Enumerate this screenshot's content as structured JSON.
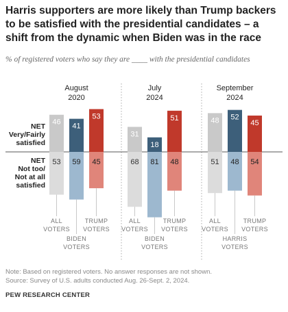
{
  "title": "Harris supporters are more likely than Trump backers to be satisfied with the presidential candidates – a shift from the dynamic when Biden was in the race",
  "subtitle": "% of registered voters who say they are ____ with the presidential candidates",
  "row_labels": {
    "satisfied": [
      "NET",
      "Very/Fairly",
      "satisfied"
    ],
    "not_satisfied": [
      "NET",
      "Not too/",
      "Not at all",
      "satisfied"
    ]
  },
  "colors": {
    "all": "#c9c9c9",
    "all_light": "#dcdcdc",
    "dem": "#3d5f7a",
    "dem_light": "#9db8cf",
    "rep": "#c0392b",
    "rep_light": "#e0857a"
  },
  "chart_data": {
    "type": "bar",
    "panels": [
      {
        "title": [
          "August",
          "2020"
        ],
        "groups": [
          {
            "label": [
              "ALL",
              "VOTERS"
            ],
            "party": "all",
            "satisfied": 46,
            "not_satisfied": 53
          },
          {
            "label": [
              "BIDEN",
              "VOTERS"
            ],
            "party": "dem",
            "satisfied": 41,
            "not_satisfied": 59
          },
          {
            "label": [
              "TRUMP",
              "VOTERS"
            ],
            "party": "rep",
            "satisfied": 53,
            "not_satisfied": 45
          }
        ]
      },
      {
        "title": [
          "July",
          "2024"
        ],
        "groups": [
          {
            "label": [
              "ALL",
              "VOTERS"
            ],
            "party": "all",
            "satisfied": 31,
            "not_satisfied": 68
          },
          {
            "label": [
              "BIDEN",
              "VOTERS"
            ],
            "party": "dem",
            "satisfied": 18,
            "not_satisfied": 81
          },
          {
            "label": [
              "TRUMP",
              "VOTERS"
            ],
            "party": "rep",
            "satisfied": 51,
            "not_satisfied": 48
          }
        ]
      },
      {
        "title": [
          "September",
          "2024"
        ],
        "groups": [
          {
            "label": [
              "ALL",
              "VOTERS"
            ],
            "party": "all",
            "satisfied": 48,
            "not_satisfied": 51
          },
          {
            "label": [
              "HARRIS",
              "VOTERS"
            ],
            "party": "dem",
            "satisfied": 52,
            "not_satisfied": 48
          },
          {
            "label": [
              "TRUMP",
              "VOTERS"
            ],
            "party": "rep",
            "satisfied": 45,
            "not_satisfied": 54
          }
        ]
      }
    ]
  },
  "notes": [
    "Note: Based on registered voters. No answer responses are not shown.",
    "Source: Survey of U.S. adults conducted Aug. 26-Sept. 2, 2024."
  ],
  "credit": "PEW RESEARCH CENTER"
}
